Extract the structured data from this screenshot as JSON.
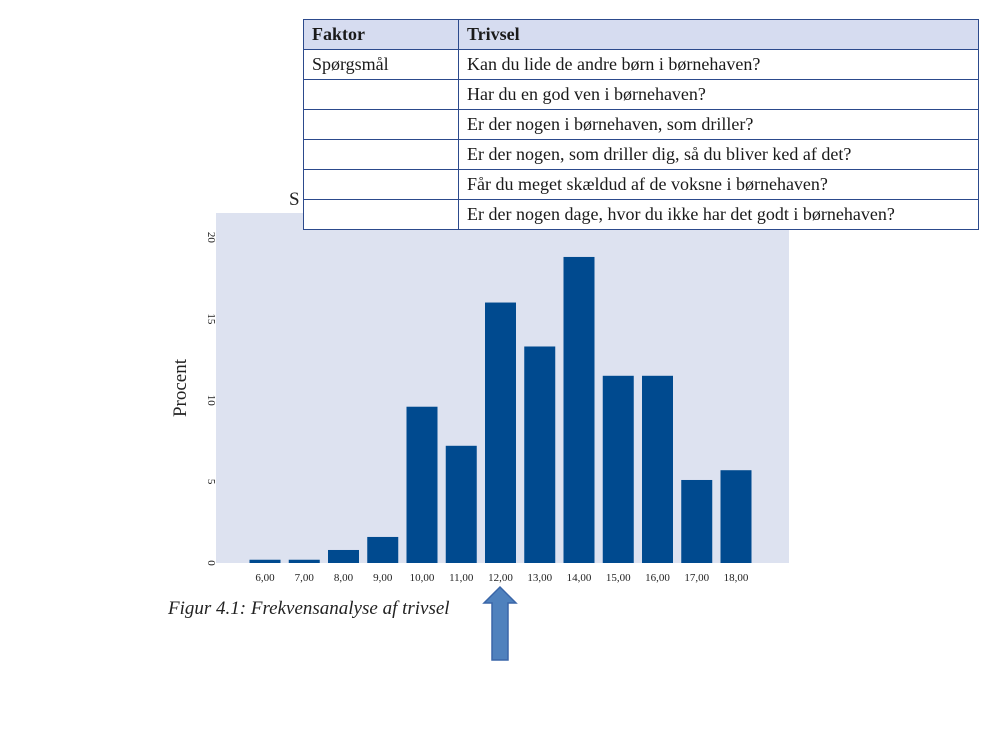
{
  "figure": {
    "caption": "Figur 4.1: Frekvensanalyse af trivsel",
    "peek_letter": "S"
  },
  "table": {
    "headers": [
      "Faktor",
      "Trivsel"
    ],
    "rows": [
      [
        "Spørgsmål",
        "Kan du lide de andre børn i børnehaven?"
      ],
      [
        "",
        "Har du en god ven i børnehaven?"
      ],
      [
        "",
        "Er der nogen i børnehaven, som driller?"
      ],
      [
        "",
        "Er der nogen, som driller dig, så du bliver ked af det?"
      ],
      [
        "",
        "Får du meget skældud af de voksne i børnehaven?"
      ],
      [
        "",
        "Er der nogen dage, hvor du ikke har det godt i børnehaven?"
      ]
    ]
  },
  "annotation": {
    "arrow_color": "#4f81bd",
    "points_to": "12,00"
  },
  "chart_data": {
    "type": "bar",
    "categories": [
      "6,00",
      "7,00",
      "8,00",
      "9,00",
      "10,00",
      "11,00",
      "12,00",
      "13,00",
      "14,00",
      "15,00",
      "16,00",
      "17,00",
      "18,00"
    ],
    "values": [
      0.2,
      0.2,
      0.8,
      1.6,
      9.6,
      7.2,
      16.0,
      13.3,
      18.8,
      11.5,
      11.5,
      5.1,
      5.7
    ],
    "xlabel": "",
    "ylabel": "Procent",
    "ylim": [
      0,
      21.5
    ],
    "yticks": [
      0,
      5,
      10,
      15,
      20
    ],
    "grid": false,
    "bar_color": "#004a8f",
    "plot_background": "#dde2f0"
  }
}
